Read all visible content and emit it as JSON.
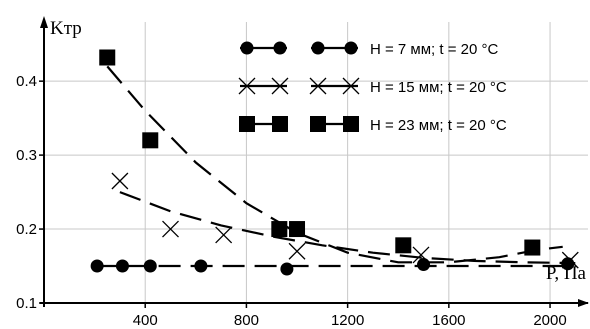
{
  "chart_data": {
    "type": "scatter",
    "xlabel": "P, Па",
    "ylabel": "Kтр",
    "xlim": [
      0,
      2150
    ],
    "ylim": [
      0.1,
      0.48
    ],
    "x_ticks": [
      400,
      800,
      1200,
      1600,
      2000
    ],
    "y_ticks": [
      0.1,
      0.2,
      0.3,
      0.4
    ],
    "y_tick_labels": [
      "0.1",
      "0.2",
      "0.3",
      "0.4"
    ],
    "grid": true,
    "legend_position": "top-right",
    "series": [
      {
        "name": "H = 7 мм; t = 20 °C",
        "marker": "circle",
        "points": [
          [
            210,
            0.15
          ],
          [
            310,
            0.15
          ],
          [
            420,
            0.15
          ],
          [
            620,
            0.15
          ],
          [
            960,
            0.146
          ],
          [
            1500,
            0.152
          ],
          [
            2070,
            0.153
          ]
        ],
        "fit": [
          [
            200,
            0.15
          ],
          [
            700,
            0.15
          ],
          [
            1300,
            0.15
          ],
          [
            2100,
            0.15
          ]
        ]
      },
      {
        "name": "H = 15 мм; t = 20 °C",
        "marker": "x",
        "points": [
          [
            300,
            0.265
          ],
          [
            500,
            0.2
          ],
          [
            710,
            0.192
          ],
          [
            1000,
            0.17
          ],
          [
            1490,
            0.165
          ],
          [
            2080,
            0.158
          ]
        ],
        "fit": [
          [
            300,
            0.25
          ],
          [
            500,
            0.224
          ],
          [
            700,
            0.205
          ],
          [
            900,
            0.19
          ],
          [
            1100,
            0.178
          ],
          [
            1300,
            0.168
          ],
          [
            1500,
            0.161
          ],
          [
            1700,
            0.157
          ],
          [
            1900,
            0.155
          ],
          [
            2100,
            0.154
          ]
        ]
      },
      {
        "name": "H = 23 мм; t = 20 °C",
        "marker": "square",
        "points": [
          [
            250,
            0.432
          ],
          [
            420,
            0.32
          ],
          [
            930,
            0.2
          ],
          [
            1000,
            0.2
          ],
          [
            1420,
            0.178
          ],
          [
            1930,
            0.175
          ]
        ],
        "fit": [
          [
            250,
            0.42
          ],
          [
            400,
            0.36
          ],
          [
            600,
            0.29
          ],
          [
            800,
            0.235
          ],
          [
            1000,
            0.195
          ],
          [
            1200,
            0.168
          ],
          [
            1400,
            0.155
          ],
          [
            1600,
            0.155
          ],
          [
            1800,
            0.162
          ],
          [
            1950,
            0.172
          ],
          [
            2050,
            0.176
          ]
        ]
      }
    ]
  }
}
